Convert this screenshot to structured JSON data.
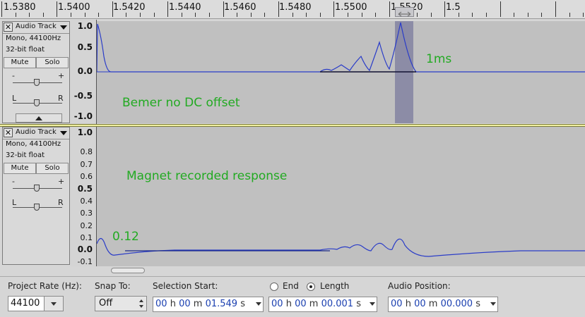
{
  "ruler": {
    "labels": [
      "1.5380",
      "1.5400",
      "1.5420",
      "1.5440",
      "1.5460",
      "1.5480",
      "1.5500",
      "1.5520",
      "1.5"
    ]
  },
  "tracks": [
    {
      "name": "Audio Track",
      "format": "Mono, 44100Hz",
      "depth": "32-bit float",
      "mute_label": "Mute",
      "solo_label": "Solo",
      "gain_minus": "-",
      "gain_plus": "+",
      "pan_left": "L",
      "pan_right": "R",
      "scale": [
        "1.0",
        "0.5",
        "0.0",
        "-0.5",
        "-1.0"
      ],
      "annotations": [
        "1ms",
        "Bemer no DC offset"
      ]
    },
    {
      "name": "Audio Track",
      "format": "Mono, 44100Hz",
      "depth": "32-bit float",
      "mute_label": "Mute",
      "solo_label": "Solo",
      "gain_minus": "-",
      "gain_plus": "+",
      "pan_left": "L",
      "pan_right": "R",
      "scale": [
        "1.0",
        "0.8",
        "0.7",
        "0.6",
        "0.5",
        "0.4",
        "0.3",
        "0.2",
        "0.1",
        "0.0",
        "-0.1"
      ],
      "annotations": [
        "Magnet recorded response",
        "0.12"
      ]
    }
  ],
  "toolbar": {
    "project_rate_label": "Project Rate (Hz):",
    "project_rate_value": "44100",
    "snap_to_label": "Snap To:",
    "snap_to_value": "Off",
    "selection_start_label": "Selection Start:",
    "end_label": "End",
    "length_label": "Length",
    "audio_position_label": "Audio Position:",
    "selection_start": {
      "h": "00",
      "m": "00",
      "s": "01.549"
    },
    "length": {
      "h": "00",
      "m": "00",
      "s": "00.001"
    },
    "audio_position": {
      "h": "00",
      "m": "00",
      "s": "00.000"
    },
    "unit_h": "h",
    "unit_m": "m",
    "unit_s": "s"
  },
  "colors": {
    "waveform": "#2a3cc8",
    "selection": "#8c8ca6",
    "annotation": "#22aa22",
    "track_bg": "#c0c0c0"
  }
}
